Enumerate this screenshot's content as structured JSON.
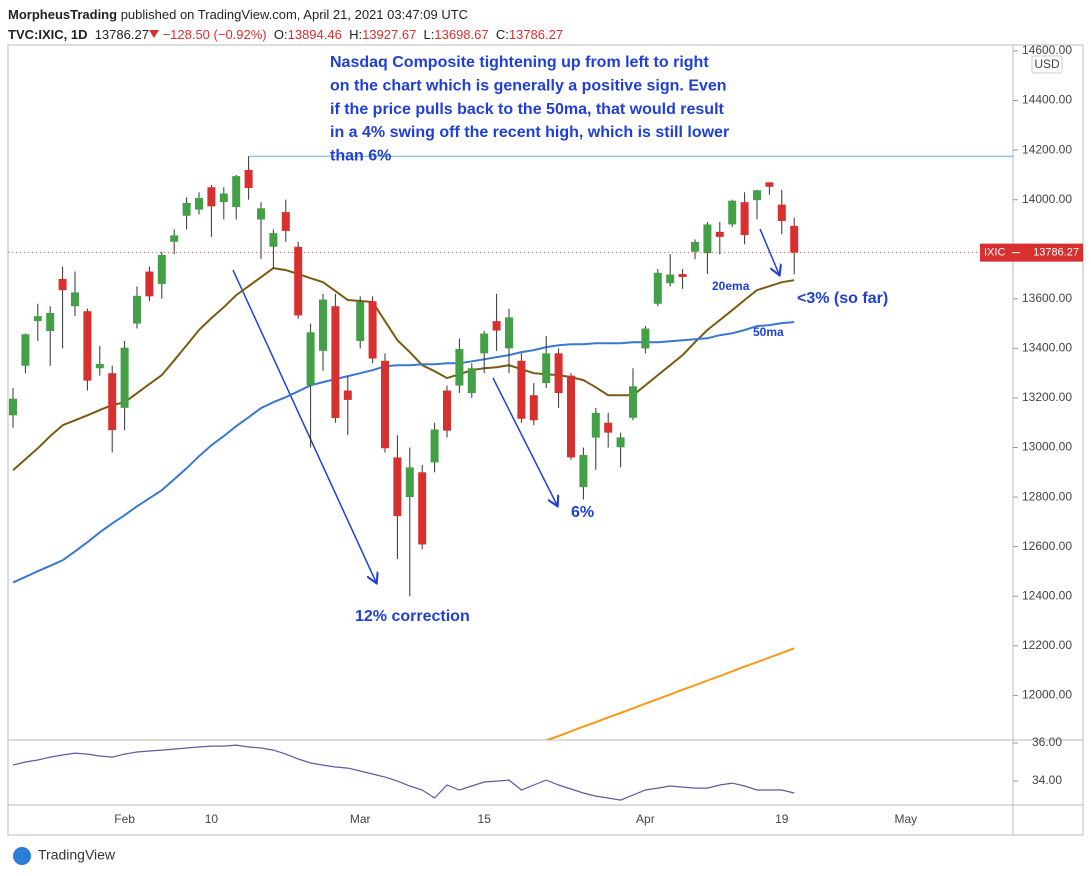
{
  "header": {
    "author": "MorpheusTrading",
    "published": "published on TradingView.com, April 21, 2021 03:47:09 UTC",
    "symbol": "TVC:IXIC, 1D",
    "change": "−128.50 (−0.92%)",
    "ohlc_labels": [
      "O:",
      "H:",
      "L:",
      "C:"
    ]
  },
  "footer": {
    "brand": "TradingView"
  },
  "chart_data": {
    "type": "candlestick",
    "symbol_tag": "IXIC",
    "currency": "USD",
    "up_color": "#43a047",
    "down_color": "#d8302f",
    "grid": false,
    "categories": [
      null,
      null,
      null,
      null,
      null,
      null,
      null,
      null,
      null,
      "Feb",
      null,
      null,
      null,
      null,
      null,
      null,
      "10",
      null,
      null,
      null,
      null,
      null,
      null,
      null,
      null,
      null,
      null,
      null,
      "Mar",
      null,
      null,
      null,
      null,
      null,
      null,
      null,
      null,
      null,
      "15",
      null,
      null,
      null,
      null,
      null,
      null,
      null,
      null,
      null,
      null,
      null,
      null,
      "Apr",
      null,
      null,
      null,
      null,
      null,
      null,
      null,
      null,
      null,
      null,
      "19",
      null,
      null,
      null,
      null,
      null,
      null,
      null,
      null,
      null,
      "May"
    ],
    "open": [
      13130,
      13330,
      13510,
      13470,
      13680,
      13570,
      13550,
      13320,
      13300,
      13160,
      13500,
      13710,
      13660,
      13830,
      13935,
      13960,
      14050,
      13990,
      13970,
      14120,
      13920,
      13810,
      13950,
      13810,
      13250,
      13390,
      13570,
      13230,
      13430,
      13590,
      13350,
      12960,
      12800,
      12900,
      12940,
      13230,
      13250,
      13220,
      13380,
      13510,
      13400,
      13350,
      13211,
      13260,
      13380,
      13290,
      12840,
      13040,
      13100,
      13001,
      13120,
      13400,
      13580,
      13663,
      13700,
      13790,
      13784,
      13870,
      13900,
      13990,
      13998,
      14070,
      13980,
      13894.46,
      null,
      null,
      null,
      null,
      null,
      null,
      null,
      null,
      null
    ],
    "high": [
      13240,
      13460,
      13580,
      13570,
      13730,
      13710,
      13560,
      13410,
      13330,
      13430,
      13650,
      13730,
      13790,
      13880,
      14010,
      14030,
      14060,
      14050,
      14100,
      14175,
      13990,
      13880,
      14000,
      13830,
      13500,
      13620,
      13620,
      13290,
      13610,
      13610,
      13380,
      13050,
      13000,
      12930,
      13100,
      13250,
      13440,
      13340,
      13470,
      13620,
      13560,
      13380,
      13260,
      13450,
      13400,
      13300,
      13000,
      13160,
      13140,
      13060,
      13320,
      13490,
      13720,
      13780,
      13720,
      13840,
      13910,
      13910,
      14000,
      14030,
      14040,
      14070,
      14040,
      13927.67,
      null,
      null,
      null,
      null,
      null,
      null,
      null,
      null,
      null
    ],
    "low": [
      13080,
      13300,
      13430,
      13330,
      13400,
      13530,
      13230,
      13290,
      12980,
      13070,
      13480,
      13590,
      13600,
      13780,
      13880,
      13940,
      13850,
      13920,
      13920,
      14000,
      13760,
      13720,
      13830,
      13520,
      13000,
      13310,
      13100,
      13050,
      13400,
      13340,
      12980,
      12550,
      12400,
      12590,
      12900,
      13040,
      13220,
      13200,
      13300,
      13390,
      13300,
      13100,
      13090,
      13240,
      13160,
      12950,
      12790,
      12910,
      13000,
      12920,
      13110,
      13380,
      13570,
      13650,
      13640,
      13760,
      13700,
      13780,
      13890,
      13820,
      13920,
      14020,
      13860,
      13698.67,
      null,
      null,
      null,
      null,
      null,
      null,
      null,
      null,
      null
    ],
    "close": [
      13197,
      13457,
      13530,
      13543,
      13635,
      13626,
      13270,
      13337,
      13070,
      13403,
      13612,
      13610,
      13777,
      13856,
      13987,
      14007,
      13973,
      14025,
      14095,
      14047,
      13965,
      13865,
      13874,
      13533,
      13465,
      13597,
      13119,
      13192,
      13588,
      13359,
      12997,
      12723,
      12920,
      12609,
      13073,
      13068,
      13398,
      13320,
      13460,
      13472,
      13525,
      13116,
      13110,
      13380,
      13220,
      12960,
      12970,
      13140,
      13060,
      13041,
      13247,
      13480,
      13705,
      13698,
      13688,
      13829,
      13900,
      13850,
      13996,
      13857,
      14038,
      14052,
      13914,
      13786.27,
      null,
      null,
      null,
      null,
      null,
      null,
      null,
      null,
      null
    ],
    "overlays": [
      {
        "color": "#7b5a12",
        "values": [
          12908,
          12953,
          12997,
          13046,
          13090,
          13110,
          13130,
          13151,
          13171,
          13183,
          13219,
          13256,
          13292,
          13352,
          13413,
          13474,
          13522,
          13566,
          13615,
          13651,
          13687,
          13724,
          13716,
          13700,
          13683,
          13667,
          13631,
          13595,
          13591,
          13587,
          13510,
          13433,
          13385,
          13332,
          13308,
          13280,
          13296,
          13312,
          13320,
          13324,
          13332,
          13316,
          13300,
          13296,
          13292,
          13284,
          13272,
          13243,
          13211,
          13211,
          13211,
          13251,
          13292,
          13332,
          13373,
          13425,
          13474,
          13514,
          13554,
          13595,
          13635,
          13651,
          13667,
          13675,
          null,
          null,
          null,
          null,
          null,
          null,
          null,
          null,
          null
        ]
      },
      {
        "color": "#3a78d0",
        "values": [
          12456,
          12478,
          12501,
          12523,
          12545,
          12581,
          12618,
          12658,
          12694,
          12727,
          12763,
          12795,
          12828,
          12872,
          12916,
          12965,
          13009,
          13046,
          13086,
          13122,
          13159,
          13183,
          13203,
          13227,
          13251,
          13264,
          13276,
          13288,
          13300,
          13312,
          13328,
          13332,
          13332,
          13336,
          13336,
          13340,
          13340,
          13348,
          13356,
          13365,
          13373,
          13385,
          13393,
          13405,
          13413,
          13417,
          13417,
          13421,
          13421,
          13421,
          13425,
          13425,
          13425,
          13429,
          13433,
          13437,
          13441,
          13453,
          13461,
          13474,
          13490,
          13494,
          13502,
          13506,
          null,
          null,
          null,
          null,
          null,
          null,
          null,
          null,
          null
        ]
      },
      {
        "color": "#f59a1b",
        "values": [
          null,
          null,
          null,
          null,
          null,
          null,
          null,
          null,
          null,
          null,
          null,
          null,
          null,
          null,
          null,
          null,
          null,
          null,
          null,
          null,
          null,
          null,
          null,
          null,
          null,
          null,
          null,
          null,
          null,
          null,
          null,
          null,
          null,
          null,
          null,
          null,
          null,
          null,
          null,
          null,
          null,
          null,
          null,
          11818,
          11836,
          11855,
          11874,
          11892,
          11911,
          11929,
          11948,
          11967,
          11985,
          12004,
          12023,
          12041,
          12060,
          12078,
          12097,
          12116,
          12134,
          12153,
          12171,
          12190,
          null,
          null,
          null,
          null,
          null,
          null,
          null,
          null,
          null
        ]
      }
    ],
    "ylim": [
      11820,
      14624
    ],
    "yticks": [
      {
        "value": 12000,
        "label": "12000.00"
      },
      {
        "value": 12200,
        "label": "12200.00"
      },
      {
        "value": 12400,
        "label": "12400.00"
      },
      {
        "value": 12600,
        "label": "12600.00"
      },
      {
        "value": 12800,
        "label": "12800.00"
      },
      {
        "value": 13000,
        "label": "13000.00"
      },
      {
        "value": 13200,
        "label": "13200.00"
      },
      {
        "value": 13400,
        "label": "13400.00"
      },
      {
        "value": 13600,
        "label": "13600.00"
      },
      {
        "value": 13800,
        "label": "13800.00"
      },
      {
        "value": 14000,
        "label": "14000.00"
      },
      {
        "value": 14200,
        "label": "14200.00"
      },
      {
        "value": 14400,
        "label": "14400.00"
      },
      {
        "value": 14600,
        "label": "14600.00"
      }
    ],
    "oscillator": {
      "color": "#5b5ba3",
      "ylim": [
        32.74,
        36.16
      ],
      "yticks": [
        {
          "value": 34,
          "label": "34.00"
        },
        {
          "value": 36,
          "label": "36.00"
        }
      ],
      "values": [
        34.84,
        35.0,
        35.11,
        35.26,
        35.37,
        35.47,
        35.42,
        35.32,
        35.26,
        35.42,
        35.53,
        35.58,
        35.63,
        35.68,
        35.74,
        35.79,
        35.84,
        35.84,
        35.89,
        35.79,
        35.74,
        35.63,
        35.42,
        35.16,
        34.95,
        34.84,
        34.74,
        34.68,
        34.53,
        34.37,
        34.21,
        34.0,
        33.74,
        33.53,
        33.11,
        33.79,
        33.53,
        33.74,
        33.95,
        34.0,
        34.05,
        33.53,
        33.79,
        34.05,
        33.79,
        33.58,
        33.37,
        33.21,
        33.11,
        33.0,
        33.26,
        33.53,
        33.63,
        33.74,
        33.68,
        33.63,
        33.63,
        33.79,
        33.89,
        33.74,
        33.53,
        33.53,
        33.53,
        33.37,
        null,
        null,
        null,
        null,
        null,
        null,
        null,
        null,
        null
      ]
    },
    "annotations": {
      "note_lines": [
        "Nasdaq Composite tightening up from left to right",
        "on the chart which is generally a positive sign.  Even",
        "if the price pulls back to the 50ma, that would result",
        "in a 4% swing off the recent high, which is still lower",
        "than 6%"
      ],
      "correction": "12% correction",
      "pullback": "6%",
      "recent": "<3% (so far)",
      "ema_label": "20ema",
      "ma_label": "50ma"
    }
  }
}
